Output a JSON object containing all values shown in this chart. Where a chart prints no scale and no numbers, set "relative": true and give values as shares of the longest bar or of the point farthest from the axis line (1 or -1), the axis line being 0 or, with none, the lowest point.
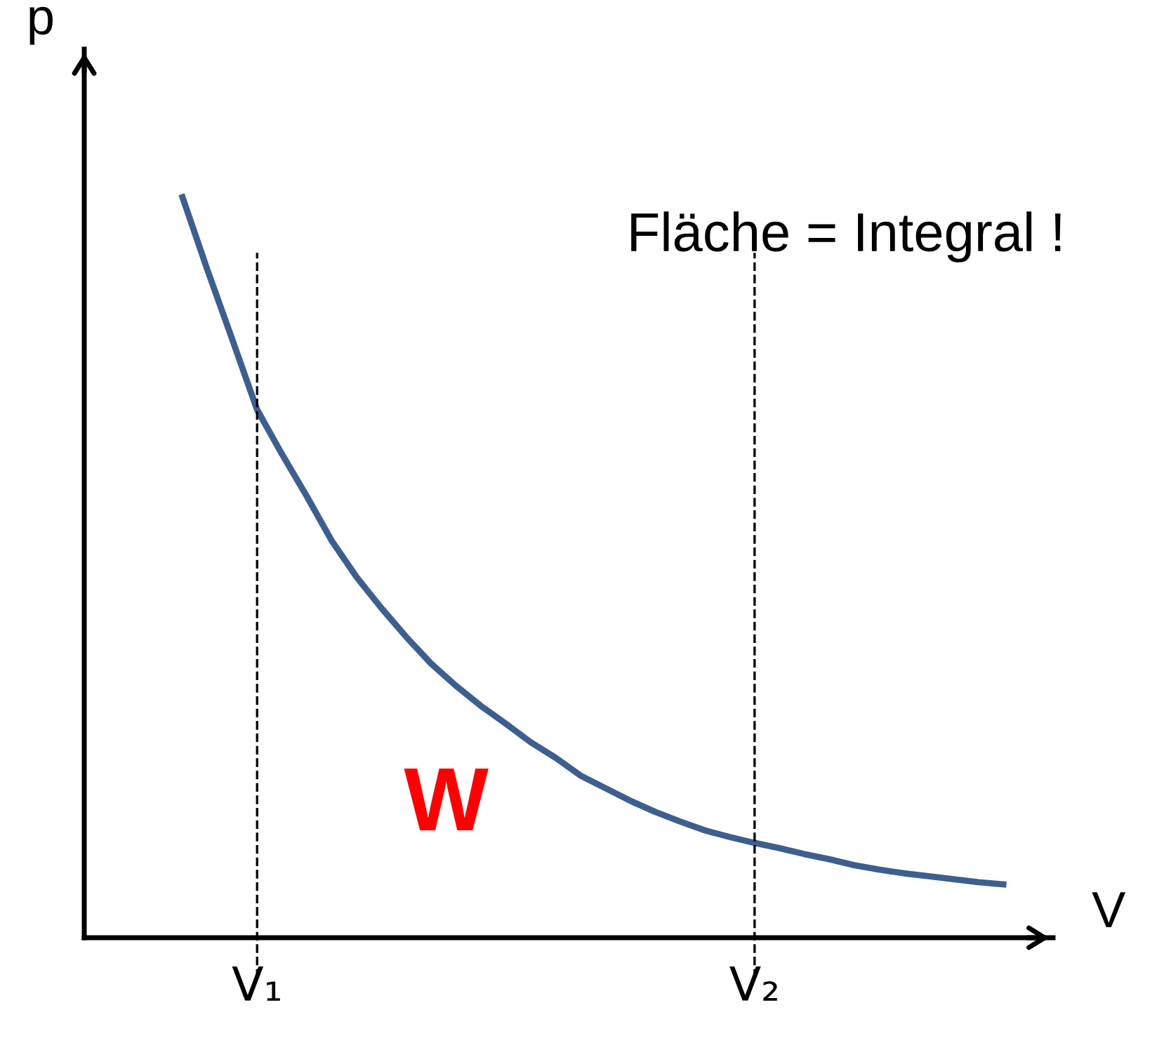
{
  "chart_data": {
    "type": "line",
    "relative": true,
    "xlabel": "V",
    "ylabel": "p",
    "categories": [
      null,
      null,
      null,
      "V₁",
      null,
      null,
      null,
      null,
      null,
      null,
      null,
      null,
      null,
      null,
      null,
      null,
      null,
      null,
      null,
      null,
      null,
      null,
      null,
      "V₂",
      null,
      null,
      null,
      null,
      null,
      null,
      null,
      null,
      null,
      null
    ],
    "series": [
      {
        "color": "#3d5f8f",
        "values": [
          1.0,
          0.902,
          0.808,
          0.713,
          0.653,
          0.596,
          0.536,
          0.487,
          0.445,
          0.406,
          0.37,
          0.34,
          0.313,
          0.289,
          0.264,
          0.243,
          0.219,
          0.202,
          0.185,
          0.17,
          0.157,
          0.145,
          0.136,
          0.128,
          0.121,
          0.113,
          0.106,
          0.098,
          0.092,
          0.087,
          0.083,
          0.079,
          0.075,
          0.072
        ]
      }
    ],
    "ref_lines": [
      {
        "axis": "x",
        "value": "V₁",
        "color": "#000000",
        "line_style": "dashed"
      },
      {
        "axis": "x",
        "value": "V₂",
        "color": "#000000",
        "line_style": "dashed"
      }
    ],
    "annotations": [
      "Fläche = Integral !",
      "W"
    ],
    "grid": false,
    "marker": "none",
    "line_style": "solid"
  }
}
